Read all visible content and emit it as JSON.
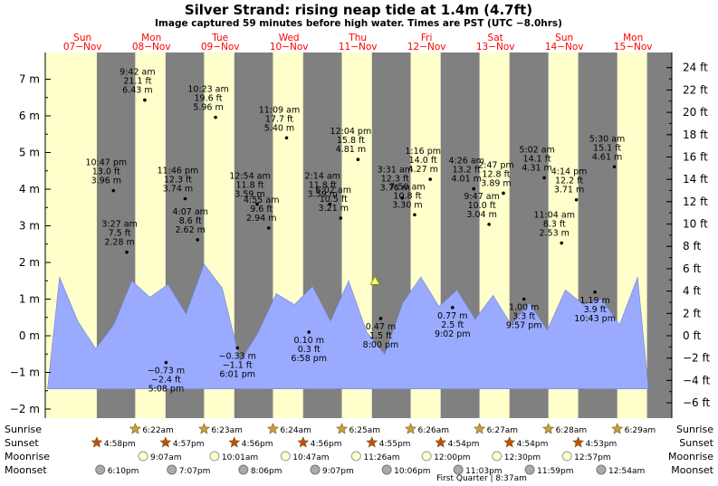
{
  "chart_data": {
    "type": "area",
    "title": "Silver Strand: rising  neap tide at 1.4m (4.7ft)",
    "subtitle": "Image captured 59 minutes before high water. Times are PST (UTC −8.0hrs)",
    "left_axis": {
      "unit": "m",
      "range": [
        -2.2,
        7.5
      ],
      "ticks": [
        "−2 m",
        "−1 m",
        "0 m",
        "1 m",
        "2 m",
        "3 m",
        "4 m",
        "5 m",
        "6 m",
        "7 m"
      ]
    },
    "right_axis": {
      "unit": "ft",
      "ticks": [
        "−6 ft",
        "−4 ft",
        "−2 ft",
        "0 ft",
        "2 ft",
        "4 ft",
        "6 ft",
        "8 ft",
        "10 ft",
        "12 ft",
        "14 ft",
        "16 ft",
        "18 ft",
        "20 ft",
        "22 ft",
        "24 ft"
      ]
    },
    "days": [
      {
        "name": "Sun",
        "date": "07−Nov"
      },
      {
        "name": "Mon",
        "date": "08−Nov"
      },
      {
        "name": "Tue",
        "date": "09−Nov"
      },
      {
        "name": "Wed",
        "date": "10−Nov"
      },
      {
        "name": "Thu",
        "date": "11−Nov"
      },
      {
        "name": "Fri",
        "date": "12−Nov"
      },
      {
        "name": "Sat",
        "date": "13−Nov"
      },
      {
        "name": "Sun",
        "date": "14−Nov"
      },
      {
        "name": "Mon",
        "date": "15−Nov"
      }
    ],
    "tides": [
      {
        "time": "3:27 am",
        "ft": "7.5 ft",
        "m": "2.28 m",
        "h": 2.28,
        "t": 27.45
      },
      {
        "time": "9:42 am",
        "ft": "21.1 ft",
        "m": "6.43 m",
        "h": 6.43,
        "t": 33.7
      },
      {
        "time": "5:08 pm",
        "ft": "−2.4 ft",
        "m": "−0.73 m",
        "h": -0.73,
        "t": 41.13
      },
      {
        "time": "10:47 pm",
        "ft": "13.0 ft",
        "m": "3.96 m",
        "h": 3.96,
        "t": 22.78
      },
      {
        "time": "4:07 am",
        "ft": "8.6 ft",
        "m": "2.62 m",
        "h": 2.62,
        "t": 52.12
      },
      {
        "time": "10:23 am",
        "ft": "19.6 ft",
        "m": "5.96 m",
        "h": 5.96,
        "t": 58.38
      },
      {
        "time": "6:01 pm",
        "ft": "−1.1 ft",
        "m": "−0.33 m",
        "h": -0.33,
        "t": 66.02
      },
      {
        "time": "11:46 pm",
        "ft": "12.3 ft",
        "m": "3.74 m",
        "h": 3.74,
        "t": 47.77
      },
      {
        "time": "4:55 am",
        "ft": "9.6 ft",
        "m": "2.94 m",
        "h": 2.94,
        "t": 76.92
      },
      {
        "time": "11:09 am",
        "ft": "17.7 ft",
        "m": "5.40 m",
        "h": 5.4,
        "t": 83.15
      },
      {
        "time": "6:58 pm",
        "ft": "0.3 ft",
        "m": "0.10 m",
        "h": 0.1,
        "t": 90.97
      },
      {
        "time": "12:54 am",
        "ft": "11.8 ft",
        "m": "3.59 m",
        "h": 3.59,
        "t": 72.9
      },
      {
        "time": "6:02 am",
        "ft": "10.5 ft",
        "m": "3.21 m",
        "h": 3.21,
        "t": 102.03
      },
      {
        "time": "12:04 pm",
        "ft": "15.8 ft",
        "m": "4.81 m",
        "h": 4.81,
        "t": 108.07
      },
      {
        "time": "8:00 pm",
        "ft": "1.5 ft",
        "m": "0.47 m",
        "h": 0.47,
        "t": 116.0
      },
      {
        "time": "2:14 am",
        "ft": "11.8 ft",
        "m": "3.59 m",
        "h": 3.59,
        "t": 98.23
      },
      {
        "time": "7:50 am",
        "ft": "10.8 ft",
        "m": "3.30 m",
        "h": 3.3,
        "t": 127.83
      },
      {
        "time": "1:16 pm",
        "ft": "14.0 ft",
        "m": "4.27 m",
        "h": 4.27,
        "t": 133.27
      },
      {
        "time": "9:02 pm",
        "ft": "2.5 ft",
        "m": "0.77 m",
        "h": 0.77,
        "t": 141.03
      },
      {
        "time": "3:31 am",
        "ft": "12.3 ft",
        "m": "3.76 m",
        "h": 3.76,
        "t": 123.52
      },
      {
        "time": "9:47 am",
        "ft": "10.0 ft",
        "m": "3.04 m",
        "h": 3.04,
        "t": 153.78
      },
      {
        "time": "2:47 pm",
        "ft": "12.8 ft",
        "m": "3.89 m",
        "h": 3.89,
        "t": 158.78
      },
      {
        "time": "9:57 pm",
        "ft": "3.3 ft",
        "m": "1.00 m",
        "h": 1.0,
        "t": 165.95
      },
      {
        "time": "4:26 am",
        "ft": "13.2 ft",
        "m": "4.01 m",
        "h": 4.01,
        "t": 148.43
      },
      {
        "time": "11:04 am",
        "ft": "8.3 ft",
        "m": "2.53 m",
        "h": 2.53,
        "t": 179.07
      },
      {
        "time": "4:14 pm",
        "ft": "12.2 ft",
        "m": "3.71 m",
        "h": 3.71,
        "t": 184.23
      },
      {
        "time": "10:43 pm",
        "ft": "3.9 ft",
        "m": "1.19 m",
        "h": 1.19,
        "t": 190.72
      },
      {
        "time": "5:02 am",
        "ft": "14.1 ft",
        "m": "4.31 m",
        "h": 4.31,
        "t": 173.03
      },
      {
        "time": "5:30 am",
        "ft": "15.1 ft",
        "m": "4.61 m",
        "h": 4.61,
        "t": 197.5
      }
    ],
    "current": {
      "t": 114.0,
      "h": 1.4
    },
    "tide_curve": [
      [
        -1.0,
        -1.45
      ],
      [
        0.0,
        1.6
      ],
      [
        1.5,
        0.4
      ],
      [
        3.0,
        -0.35
      ],
      [
        4.5,
        0.3
      ],
      [
        6.0,
        1.5
      ],
      [
        7.5,
        1.05
      ],
      [
        9.0,
        1.4
      ],
      [
        10.5,
        0.6
      ],
      [
        12.0,
        1.95
      ],
      [
        13.5,
        1.3
      ],
      [
        15.0,
        -0.7
      ],
      [
        16.5,
        0.1
      ],
      [
        18.0,
        1.15
      ],
      [
        19.5,
        0.85
      ],
      [
        21.0,
        1.35
      ],
      [
        22.5,
        0.4
      ],
      [
        24.0,
        1.5
      ],
      [
        25.5,
        0.1
      ],
      [
        27.0,
        -0.5
      ],
      [
        28.5,
        0.9
      ],
      [
        30.0,
        1.6
      ],
      [
        31.5,
        0.8
      ],
      [
        33.0,
        1.25
      ],
      [
        34.5,
        0.45
      ],
      [
        36.0,
        1.1
      ],
      [
        37.5,
        0.3
      ],
      [
        39.0,
        0.9
      ],
      [
        40.5,
        0.15
      ],
      [
        42.0,
        1.25
      ],
      [
        43.5,
        0.85
      ],
      [
        45.0,
        1.0
      ],
      [
        46.5,
        0.3
      ],
      [
        48.0,
        1.6
      ],
      [
        48.9,
        -1.45
      ]
    ],
    "twilight": [
      {
        "sunrise_t": 6.37,
        "sunset_t": 16.97
      },
      {
        "sunrise_t": 30.37,
        "sunset_t": 40.95
      },
      {
        "sunrise_t": 54.38,
        "sunset_t": 64.93
      },
      {
        "sunrise_t": 78.4,
        "sunset_t": 88.93
      },
      {
        "sunrise_t": 102.42,
        "sunset_t": 112.92
      },
      {
        "sunrise_t": 126.43,
        "sunset_t": 136.9
      },
      {
        "sunrise_t": 150.45,
        "sunset_t": 160.9
      },
      {
        "sunrise_t": 174.47,
        "sunset_t": 184.88
      },
      {
        "sunrise_t": 198.48,
        "sunset_t": 208.88
      }
    ],
    "rows": {
      "labels": [
        "Sunrise",
        "Sunset",
        "Moonrise",
        "Moonset"
      ],
      "sunrise": [
        {
          "t": 30.37,
          "label": "6:22am"
        },
        {
          "t": 54.38,
          "label": "6:23am"
        },
        {
          "t": 78.4,
          "label": "6:24am"
        },
        {
          "t": 102.42,
          "label": "6:25am"
        },
        {
          "t": 126.43,
          "label": "6:26am"
        },
        {
          "t": 150.45,
          "label": "6:27am"
        },
        {
          "t": 174.47,
          "label": "6:28am"
        },
        {
          "t": 198.48,
          "label": "6:29am"
        }
      ],
      "sunset": [
        {
          "t": 16.97,
          "label": "4:58pm"
        },
        {
          "t": 40.95,
          "label": "4:57pm"
        },
        {
          "t": 64.93,
          "label": "4:56pm"
        },
        {
          "t": 88.93,
          "label": "4:56pm"
        },
        {
          "t": 112.92,
          "label": "4:55pm"
        },
        {
          "t": 136.9,
          "label": "4:54pm"
        },
        {
          "t": 160.9,
          "label": "4:54pm"
        },
        {
          "t": 184.88,
          "label": "4:53pm"
        }
      ],
      "moonrise": [
        {
          "t": 33.12,
          "label": "9:07am"
        },
        {
          "t": 58.02,
          "label": "10:01am"
        },
        {
          "t": 82.78,
          "label": "10:47am"
        },
        {
          "t": 107.43,
          "label": "11:26am"
        },
        {
          "t": 132.0,
          "label": "12:00pm"
        },
        {
          "t": 156.5,
          "label": "12:30pm"
        },
        {
          "t": 180.95,
          "label": "12:57pm"
        }
      ],
      "moonset": [
        {
          "t": 18.17,
          "label": "6:10pm"
        },
        {
          "t": 43.12,
          "label": "7:07pm"
        },
        {
          "t": 68.1,
          "label": "8:06pm"
        },
        {
          "t": 93.12,
          "label": "9:07pm"
        },
        {
          "t": 118.1,
          "label": "10:06pm"
        },
        {
          "t": 143.05,
          "label": "11:03pm"
        },
        {
          "t": 167.98,
          "label": "11:59pm"
        },
        {
          "t": 192.9,
          "label": "12:54am"
        }
      ],
      "first_quarter": "First Quarter | 8:37am"
    },
    "colors": {
      "night": "#808080",
      "day": "#ffffcc",
      "water": "#9aabff",
      "sun": "#c8a040",
      "sunset": "#c05010",
      "moonrise": "#ffffcc",
      "moonset": "#aaaaaa",
      "day_label": "#ff0000"
    }
  }
}
